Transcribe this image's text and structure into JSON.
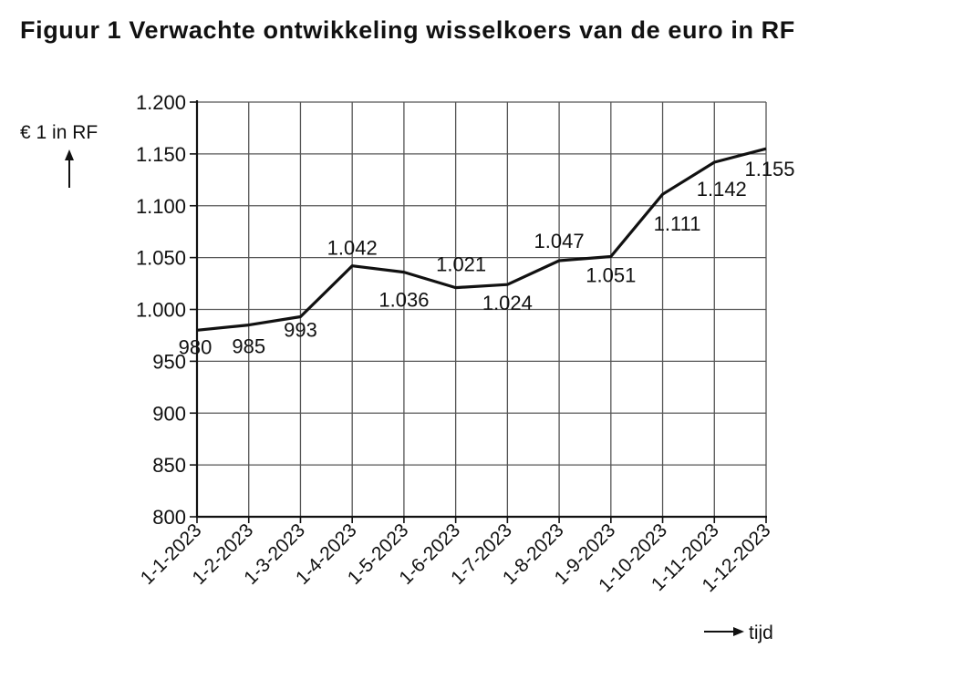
{
  "chart_data": {
    "type": "line",
    "title": "Figuur 1  Verwachte ontwikkeling wisselkoers van de euro in RF",
    "ylabel": "€ 1 in RF",
    "xlabel": "tijd",
    "x": [
      "1-1-2023",
      "1-2-2023",
      "1-3-2023",
      "1-4-2023",
      "1-5-2023",
      "1-6-2023",
      "1-7-2023",
      "1-8-2023",
      "1-9-2023",
      "1-10-2023",
      "1-11-2023",
      "1-12-2023"
    ],
    "series": [
      {
        "values": [
          980,
          985,
          993,
          1042,
          1036,
          1021,
          1024,
          1047,
          1051,
          1111,
          1142,
          1155
        ]
      }
    ],
    "data_labels": [
      "980",
      "985",
      "993",
      "1.042",
      "1.036",
      "1.021",
      "1.024",
      "1.047",
      "1.051",
      "1.111",
      "1.142",
      "1.155"
    ],
    "yticks": [
      800,
      850,
      900,
      950,
      1000,
      1050,
      1100,
      1150,
      1200
    ],
    "ytick_labels": [
      "800",
      "850",
      "900",
      "950",
      "1.000",
      "1.050",
      "1.100",
      "1.150",
      "1.200"
    ],
    "ylim": [
      800,
      1200
    ],
    "grid": true,
    "line_color": "#111111",
    "grid_color": "#555555"
  }
}
